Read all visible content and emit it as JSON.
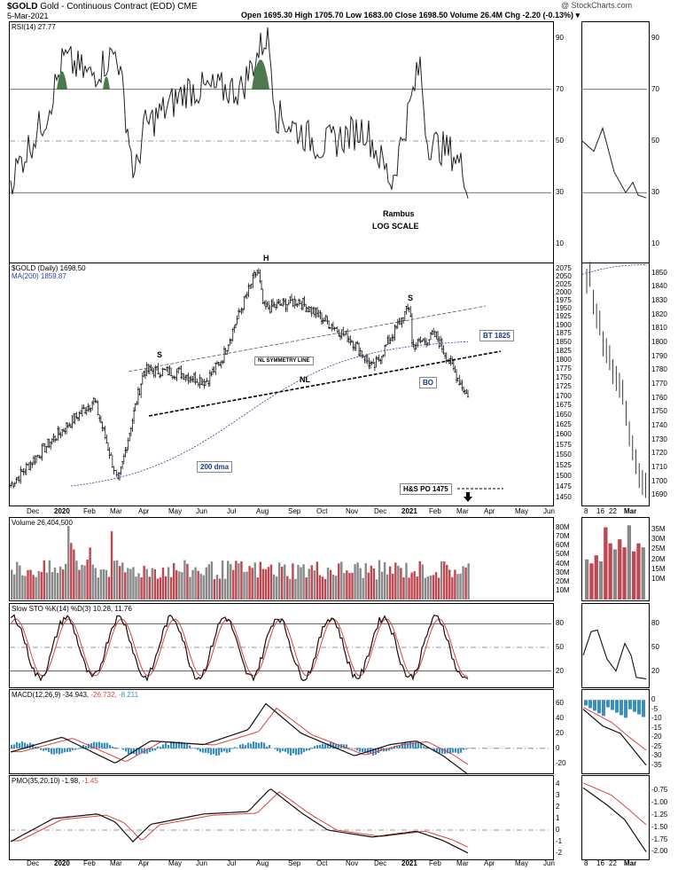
{
  "header": {
    "symbol": "$GOLD",
    "title": "Gold - Continuous Contract (EOD) CME",
    "date": "5-Mar-2021",
    "ohlc": "Open 1695.30  High 1705.70  Low 1683.00  Close 1698.50  Volume 26.4M  Chg -2.20 (-0.13%) ▾",
    "watermark": "@ StockCharts.com"
  },
  "colors": {
    "up": "#222222",
    "down": "#c0464f",
    "rsi_fill": "#4d7a4d",
    "ma": "#2b3f9e",
    "macd_hist": "#3a8fbf",
    "signal": "#e04040"
  },
  "rsi_panel": {
    "legend": "RSI(14) 27.77",
    "ticks": [
      "90",
      "70",
      "50",
      "30",
      "10"
    ],
    "annotations": [
      "Rambus",
      "LOG SCALE"
    ]
  },
  "price_panel": {
    "legend1": "$GOLD (Daily) 1698.50",
    "legend2": "MA(200) 1859.87",
    "ticks": [
      "2075",
      "2050",
      "2025",
      "2000",
      "1975",
      "1950",
      "1925",
      "1900",
      "1875",
      "1850",
      "1825",
      "1800",
      "1775",
      "1750",
      "1725",
      "1700",
      "1675",
      "1650",
      "1625",
      "1600",
      "1575",
      "1550",
      "1525",
      "1500",
      "1475",
      "1450"
    ],
    "zoom_ticks": [
      "1850",
      "1840",
      "1830",
      "1820",
      "1810",
      "1800",
      "1790",
      "1780",
      "1770",
      "1760",
      "1750",
      "1740",
      "1730",
      "1720",
      "1710",
      "1700",
      "1690"
    ],
    "annotations": {
      "h": "H",
      "s_left": "S",
      "s_right": "S",
      "nl": "NL",
      "symmetry": "NL SYMMETRY LINE",
      "bo": "BO",
      "bt": "BT 1825",
      "dma": "200 dma",
      "po": "H&S PO 1475"
    }
  },
  "volume_panel": {
    "legend": "Volume 26,404,500",
    "ticks": [
      "80M",
      "70M",
      "60M",
      "50M",
      "40M",
      "30M",
      "20M",
      "10M"
    ],
    "zoom_ticks": [
      "35M",
      "30M",
      "25M",
      "20M",
      "15M",
      "10M"
    ]
  },
  "sto_panel": {
    "legend": "Slow STO %K(14) %D(3) 10.28, 11.76",
    "ticks": [
      "80",
      "50",
      "20"
    ]
  },
  "macd_panel": {
    "legend_prefix": "MACD(12,26,9) -34.943,",
    "legend_signal": " -26.732,",
    "legend_hist": " -8.211",
    "ticks": [
      "60",
      "40",
      "20",
      "0",
      "-20"
    ],
    "zoom_ticks": [
      "0",
      "-5",
      "-10",
      "-15",
      "-20",
      "-25",
      "-30",
      "-35"
    ]
  },
  "pmo_panel": {
    "legend_prefix": "PMO(35,20,10) -1.98,",
    "legend_signal": " -1.45",
    "ticks": [
      "4",
      "3",
      "2",
      "1",
      "0",
      "-1",
      "-2"
    ],
    "zoom_ticks": [
      "-0.75",
      "-1.00",
      "-1.25",
      "-1.50",
      "-1.75",
      "-2.00"
    ]
  },
  "x_axis": [
    "Dec",
    "2020",
    "Feb",
    "Mar",
    "Apr",
    "May",
    "Jun",
    "Jul",
    "Aug",
    "Sep",
    "Oct",
    "Nov",
    "Dec",
    "2021",
    "Feb",
    "Mar",
    "Apr",
    "May",
    "Jun"
  ],
  "zoom_x_axis": [
    "8",
    "16",
    "22",
    "Mar"
  ],
  "chart_data": {
    "type": "line",
    "title": "Gold - Continuous Contract (EOD) CME",
    "subtitle": "$GOLD (Daily)",
    "price_scale": "log",
    "price_range": [
      1450,
      2075
    ],
    "price_path": [
      [
        "2019-12-02",
        1478
      ],
      [
        "2020-01-08",
        1575
      ],
      [
        "2020-02-24",
        1690
      ],
      [
        "2020-03-19",
        1480
      ],
      [
        "2020-04-14",
        1770
      ],
      [
        "2020-05-18",
        1765
      ],
      [
        "2020-06-15",
        1740
      ],
      [
        "2020-07-01",
        1800
      ],
      [
        "2020-08-06",
        2075
      ],
      [
        "2020-08-12",
        1950
      ],
      [
        "2020-09-16",
        1975
      ],
      [
        "2020-10-15",
        1910
      ],
      [
        "2020-11-09",
        1855
      ],
      [
        "2020-11-30",
        1775
      ],
      [
        "2021-01-06",
        1960
      ],
      [
        "2021-01-08",
        1840
      ],
      [
        "2021-02-01",
        1870
      ],
      [
        "2021-02-18",
        1775
      ],
      [
        "2021-03-05",
        1698.5
      ]
    ],
    "ma200_last": 1859.87,
    "rsi_last": 27.77,
    "volume_last": 26404500,
    "slow_sto": {
      "k": 10.28,
      "d": 11.76
    },
    "macd": {
      "macd": -34.943,
      "signal": -26.732,
      "hist": -8.211
    },
    "pmo": {
      "pmo": -1.98,
      "signal": -1.45
    }
  }
}
